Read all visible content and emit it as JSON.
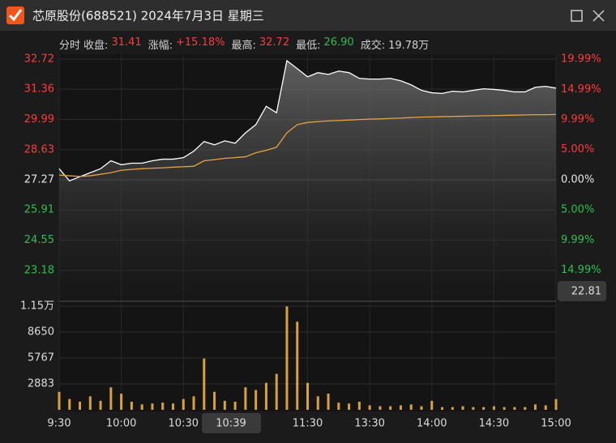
{
  "header": {
    "title": "芯原股份(688521) 2024年7月3日 星期三"
  },
  "info": {
    "mode": "分时",
    "items": [
      {
        "label": "收盘:",
        "value": "31.41",
        "color": "#ff3b3b"
      },
      {
        "label": "涨幅:",
        "value": "+15.18%",
        "color": "#ff3b3b"
      },
      {
        "label": "最高:",
        "value": "32.72",
        "color": "#ff3b3b"
      },
      {
        "label": "最低:",
        "value": "26.90",
        "color": "#2fbf4f"
      },
      {
        "label": "成交:",
        "value": "19.78万",
        "color": "#d0d0d0"
      }
    ]
  },
  "cursor": {
    "time": "10:39",
    "value": 22.81
  },
  "chart_data": [
    {
      "type": "line",
      "grid": true,
      "up_color": "#ff3b3b",
      "down_color": "#2fbf4f",
      "x": [
        0,
        5,
        10,
        15,
        20,
        25,
        30,
        35,
        40,
        45,
        50,
        55,
        60,
        65,
        70,
        75,
        80,
        85,
        90,
        95,
        100,
        105,
        110,
        115,
        120,
        125,
        130,
        135,
        140,
        145,
        150,
        155,
        160,
        165,
        170,
        175,
        180,
        185,
        190,
        195,
        200,
        205,
        210,
        215,
        220,
        225,
        230,
        235,
        240
      ],
      "xlim": [
        0,
        240
      ],
      "xticks": [
        {
          "value": 0,
          "label": "9:30"
        },
        {
          "value": 30,
          "label": "10:00"
        },
        {
          "value": 60,
          "label": "10:30"
        },
        {
          "value": 120,
          "label": "11:30"
        },
        {
          "value": 150,
          "label": "13:30"
        },
        {
          "value": 180,
          "label": "14:00"
        },
        {
          "value": 210,
          "label": "14:30"
        },
        {
          "value": 240,
          "label": "15:00"
        }
      ],
      "ylim": [
        21.82,
        32.72
      ],
      "yticks": [
        32.72,
        31.36,
        29.99,
        28.63,
        27.27,
        25.91,
        24.55,
        23.18
      ],
      "y2lim": [
        -20,
        19.99
      ],
      "y2ticks": [
        {
          "value": 19.99,
          "label": "19.99%"
        },
        {
          "value": 14.99,
          "label": "14.99%"
        },
        {
          "value": 9.99,
          "label": "9.99%"
        },
        {
          "value": 5.0,
          "label": "5.00%"
        },
        {
          "value": 0,
          "label": "0.00%"
        },
        {
          "value": -5.0,
          "label": "5.00%"
        },
        {
          "value": -9.99,
          "label": "9.99%"
        },
        {
          "value": -14.99,
          "label": "14.99%"
        }
      ],
      "series": [
        {
          "color": "#ffffff",
          "values": [
            27.77,
            27.22,
            27.41,
            27.59,
            27.77,
            28.13,
            27.95,
            28.02,
            28.02,
            28.13,
            28.2,
            28.2,
            28.27,
            28.56,
            29.0,
            28.85,
            29.03,
            28.92,
            29.39,
            29.76,
            30.59,
            30.3,
            32.65,
            32.29,
            31.92,
            32.11,
            32.03,
            32.18,
            32.11,
            31.85,
            31.82,
            31.82,
            31.85,
            31.74,
            31.56,
            31.31,
            31.2,
            31.17,
            31.27,
            31.24,
            31.31,
            31.38,
            31.35,
            31.31,
            31.24,
            31.24,
            31.45,
            31.49,
            31.41
          ]
        },
        {
          "color": "#e8a33d",
          "values": [
            27.48,
            27.45,
            27.42,
            27.45,
            27.52,
            27.59,
            27.7,
            27.74,
            27.77,
            27.79,
            27.81,
            27.84,
            27.86,
            27.88,
            28.13,
            28.18,
            28.24,
            28.27,
            28.31,
            28.49,
            28.6,
            28.74,
            29.39,
            29.76,
            29.86,
            29.9,
            29.93,
            29.95,
            29.97,
            29.99,
            30.01,
            30.02,
            30.04,
            30.06,
            30.08,
            30.1,
            30.11,
            30.12,
            30.13,
            30.14,
            30.15,
            30.16,
            30.17,
            30.18,
            30.19,
            30.2,
            30.21,
            30.21,
            30.22
          ]
        }
      ]
    },
    {
      "type": "bar",
      "color": "#d9a040",
      "grid": true,
      "x": [
        0,
        5,
        10,
        15,
        20,
        25,
        30,
        35,
        40,
        45,
        50,
        55,
        60,
        65,
        70,
        75,
        80,
        85,
        90,
        95,
        100,
        105,
        110,
        115,
        120,
        125,
        130,
        135,
        140,
        145,
        150,
        155,
        160,
        165,
        170,
        175,
        180,
        185,
        190,
        195,
        200,
        205,
        210,
        215,
        220,
        225,
        230,
        235,
        240
      ],
      "xlim": [
        0,
        240
      ],
      "ylim": [
        0,
        11532
      ],
      "yticks": [
        {
          "value": 11532,
          "label": "1.15万"
        },
        8650,
        5767,
        2883
      ],
      "values": [
        2000,
        1200,
        900,
        1500,
        1000,
        2500,
        1800,
        900,
        600,
        700,
        800,
        700,
        1200,
        1500,
        5700,
        2000,
        1000,
        900,
        2500,
        2200,
        3000,
        4000,
        11500,
        9800,
        3000,
        1500,
        1800,
        800,
        700,
        900,
        500,
        400,
        400,
        500,
        600,
        400,
        1000,
        300,
        300,
        400,
        300,
        300,
        400,
        300,
        300,
        300,
        600,
        500,
        1200
      ]
    }
  ]
}
